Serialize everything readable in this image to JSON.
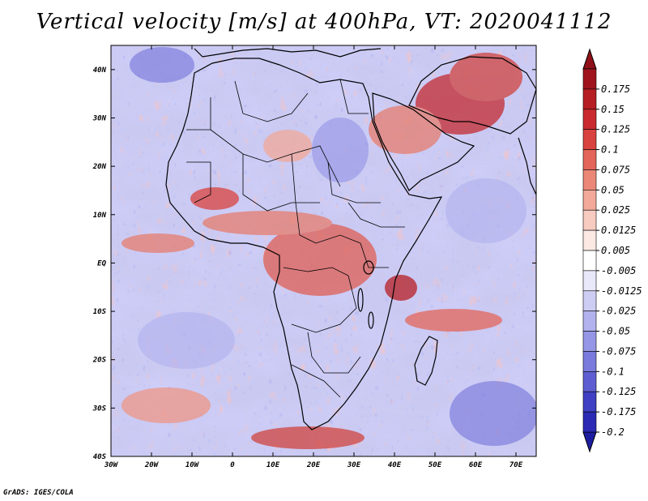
{
  "title": "Vertical velocity [m/s] at 400hPa, VT: 2020041112",
  "credit": "GrADS: IGES/COLA",
  "map": {
    "region": "Africa",
    "lon_range": [
      -30,
      75
    ],
    "lat_range": [
      -40,
      45
    ],
    "lon_ticks": [
      {
        "value": -30,
        "label": "30W"
      },
      {
        "value": -20,
        "label": "20W"
      },
      {
        "value": -10,
        "label": "10W"
      },
      {
        "value": 0,
        "label": "0"
      },
      {
        "value": 10,
        "label": "10E"
      },
      {
        "value": 20,
        "label": "20E"
      },
      {
        "value": 30,
        "label": "30E"
      },
      {
        "value": 40,
        "label": "40E"
      },
      {
        "value": 50,
        "label": "50E"
      },
      {
        "value": 60,
        "label": "60E"
      },
      {
        "value": 70,
        "label": "70E"
      }
    ],
    "lat_ticks": [
      {
        "value": 40,
        "label": "40N"
      },
      {
        "value": 30,
        "label": "30N"
      },
      {
        "value": 20,
        "label": "20N"
      },
      {
        "value": 10,
        "label": "10N"
      },
      {
        "value": 0,
        "label": "EQ"
      },
      {
        "value": -10,
        "label": "10S"
      },
      {
        "value": -20,
        "label": "20S"
      },
      {
        "value": -30,
        "label": "30S"
      },
      {
        "value": -40,
        "label": "40S"
      }
    ]
  },
  "colorbar": {
    "levels": [
      {
        "label": "0.175",
        "color": "#a0151d"
      },
      {
        "label": "0.15",
        "color": "#b61f24"
      },
      {
        "label": "0.125",
        "color": "#c92a2e"
      },
      {
        "label": "0.1",
        "color": "#d9433f"
      },
      {
        "label": "0.075",
        "color": "#e36559"
      },
      {
        "label": "0.05",
        "color": "#eb8777"
      },
      {
        "label": "0.025",
        "color": "#f2a99a"
      },
      {
        "label": "0.0125",
        "color": "#f8cbc0"
      },
      {
        "label": "0.005",
        "color": "#fce9e4"
      },
      {
        "label": "-0.005",
        "color": "#ffffff"
      },
      {
        "label": "-0.0125",
        "color": "#e8e8fa"
      },
      {
        "label": "-0.025",
        "color": "#cdcdf4"
      },
      {
        "label": "-0.05",
        "color": "#b2b2ee"
      },
      {
        "label": "-0.075",
        "color": "#9696e6"
      },
      {
        "label": "-0.1",
        "color": "#7a7adc"
      },
      {
        "label": "-0.125",
        "color": "#5e5ed2"
      },
      {
        "label": "-0.175",
        "color": "#4040c4"
      },
      {
        "label": "-0.2",
        "color": "#2a2ab4"
      }
    ],
    "top_arrow_color": "#8f1018",
    "bottom_arrow_color": "#1d1da0"
  }
}
